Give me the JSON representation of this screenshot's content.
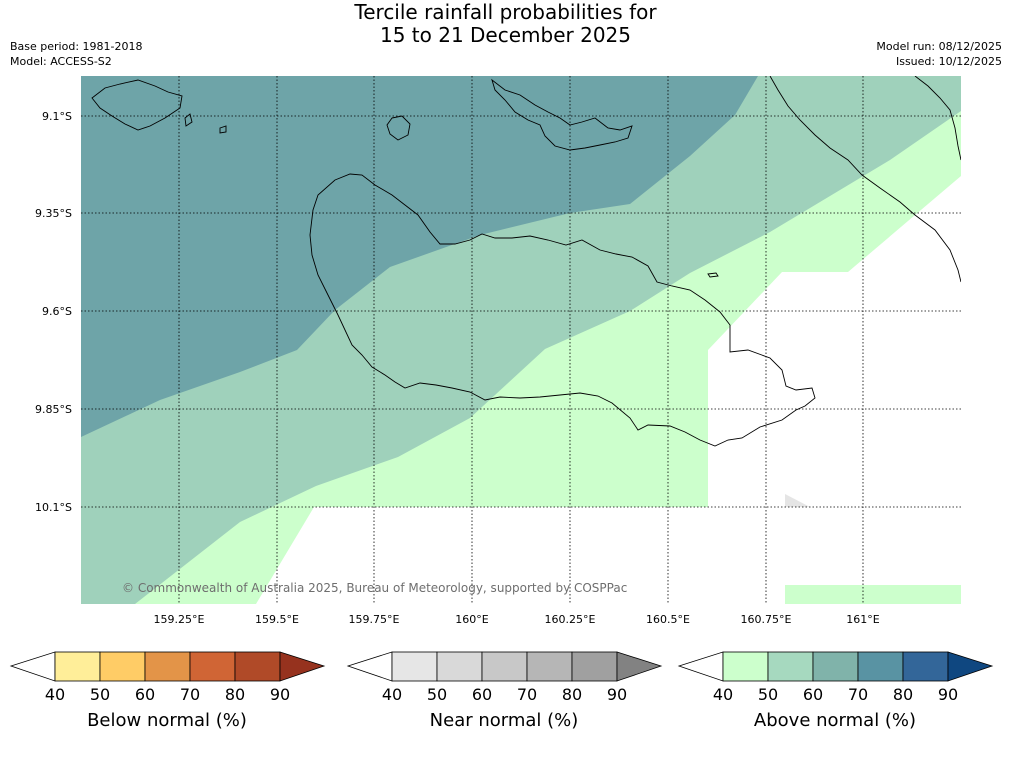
{
  "title": {
    "line1": "Tercile rainfall probabilities for",
    "line2": "15 to 21 December 2025"
  },
  "meta": {
    "base_period": "Base period: 1981-2018",
    "model": "Model: ACCESS-S2",
    "model_run": "Model run: 08/12/2025",
    "issued": "Issued: 10/12/2025"
  },
  "map": {
    "latitude_labels": [
      "9.1°S",
      "9.35°S",
      "9.6°S",
      "9.85°S",
      "10.1°S"
    ],
    "longitude_labels": [
      "159.25°E",
      "159.5°E",
      "159.75°E",
      "160°E",
      "160.25°E",
      "160.5°E",
      "160.75°E",
      "161°E"
    ],
    "credit": "© Commonwealth of Australia 2025, Bureau of Meteorology, supported by COSPPac",
    "category_colors": {
      "above_40_50": "#ccffcc",
      "above_50_60": "#9fd1bb",
      "above_70_80": "#6ea4a8",
      "near_40_50": "#e5e5e5"
    },
    "gridlines": "dotted"
  },
  "legends": [
    {
      "name": "below",
      "title": "Below normal (%)",
      "ticks": [
        "40",
        "50",
        "60",
        "70",
        "80",
        "90"
      ],
      "colors": [
        "#ffffff",
        "#ffee99",
        "#ffcc66",
        "#e39448",
        "#d06535",
        "#b04a28",
        "#96321e"
      ]
    },
    {
      "name": "near",
      "title": "Near normal (%)",
      "ticks": [
        "40",
        "50",
        "60",
        "70",
        "80",
        "90"
      ],
      "colors": [
        "#ffffff",
        "#e6e6e6",
        "#d9d9d9",
        "#c8c8c8",
        "#b6b6b6",
        "#a0a0a0",
        "#828282"
      ]
    },
    {
      "name": "above",
      "title": "Above normal (%)",
      "ticks": [
        "40",
        "50",
        "60",
        "70",
        "80",
        "90"
      ],
      "colors": [
        "#ffffff",
        "#ccffcc",
        "#a6d9bf",
        "#80b3aa",
        "#5993a3",
        "#336699",
        "#0f4780"
      ]
    }
  ]
}
